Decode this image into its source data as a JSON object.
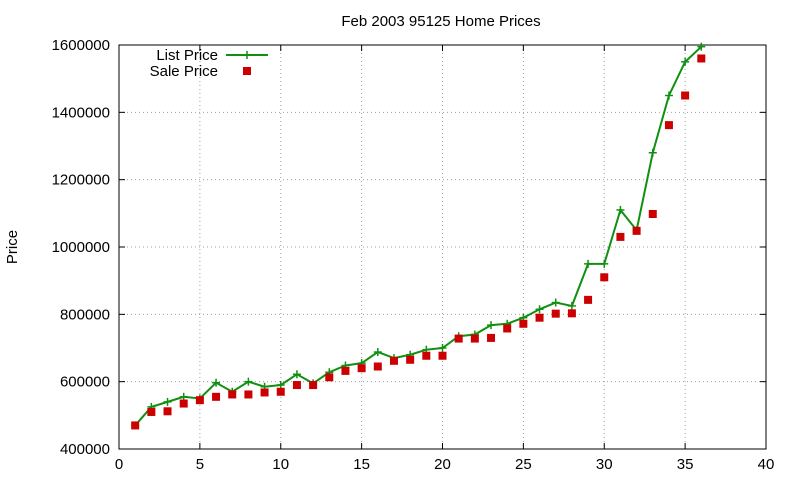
{
  "chart_data": {
    "type": "line",
    "title": "Feb 2003 95125 Home Prices",
    "xlabel": "",
    "ylabel": "Price",
    "xlim": [
      0,
      40
    ],
    "ylim": [
      400000,
      1600000
    ],
    "xticks": [
      0,
      5,
      10,
      15,
      20,
      25,
      30,
      35,
      40
    ],
    "yticks": [
      400000,
      600000,
      800000,
      1000000,
      1200000,
      1400000,
      1600000
    ],
    "grid": true,
    "legend_position": "top-left",
    "series": [
      {
        "name": "List Price",
        "style": "line-with-plus-markers",
        "color": "#109010",
        "x": [
          1,
          2,
          3,
          4,
          5,
          6,
          7,
          8,
          9,
          10,
          11,
          12,
          13,
          14,
          15,
          16,
          17,
          18,
          19,
          20,
          21,
          22,
          23,
          24,
          25,
          26,
          27,
          28,
          29,
          30,
          31,
          32,
          33,
          34,
          35,
          36
        ],
        "y": [
          470000,
          525000,
          540000,
          555000,
          550000,
          597000,
          570000,
          600000,
          585000,
          590000,
          622000,
          595000,
          628000,
          648000,
          655000,
          688000,
          670000,
          680000,
          695000,
          700000,
          735000,
          740000,
          768000,
          772000,
          790000,
          815000,
          835000,
          825000,
          950000,
          950000,
          1110000,
          1050000,
          1280000,
          1450000,
          1550000,
          1595000
        ]
      },
      {
        "name": "Sale Price",
        "style": "square-markers",
        "color": "#cc0000",
        "x": [
          1,
          2,
          3,
          4,
          5,
          6,
          7,
          8,
          9,
          10,
          11,
          12,
          13,
          14,
          15,
          16,
          17,
          18,
          19,
          20,
          21,
          22,
          23,
          24,
          25,
          26,
          27,
          28,
          29,
          30,
          31,
          32,
          33,
          34,
          35,
          36
        ],
        "y": [
          470000,
          510000,
          512000,
          535000,
          545000,
          555000,
          562000,
          562000,
          568000,
          570000,
          590000,
          590000,
          613000,
          632000,
          640000,
          645000,
          662000,
          665000,
          677000,
          677000,
          728000,
          728000,
          730000,
          758000,
          772000,
          790000,
          802000,
          803000,
          843000,
          910000,
          1030000,
          1048000,
          1098000,
          1362000,
          1450000,
          1560000
        ]
      }
    ]
  }
}
